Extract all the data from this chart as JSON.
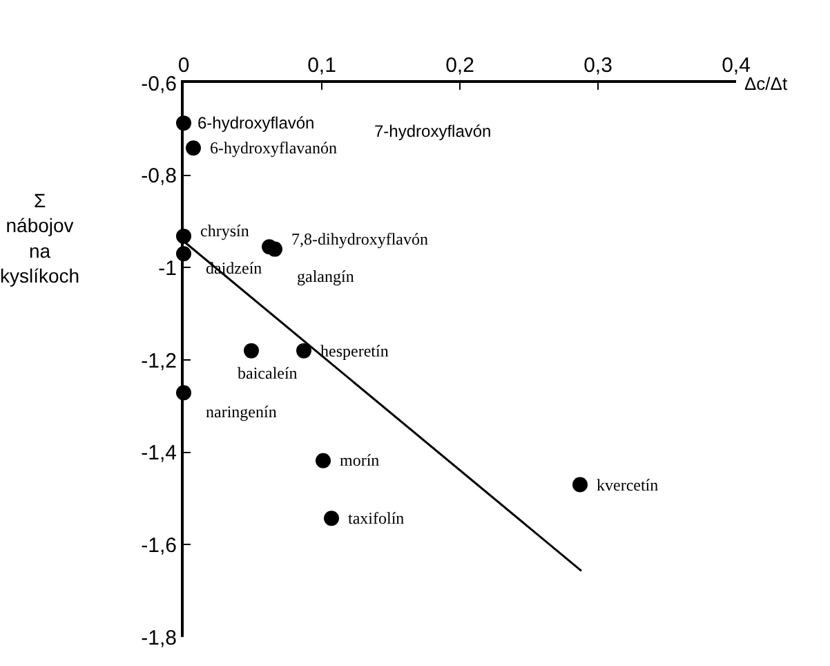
{
  "chart_data": {
    "type": "scatter",
    "xlabel": "Δc/Δt",
    "ylabel": "Σ nábojov na kyslíkoch",
    "xlim": [
      0,
      0.4
    ],
    "xticks": [
      {
        "value": 0,
        "label": "0"
      },
      {
        "value": 0.1,
        "label": "0,1"
      },
      {
        "value": 0.2,
        "label": "0,2"
      },
      {
        "value": 0.3,
        "label": "0,3"
      },
      {
        "value": 0.4,
        "label": "0,4"
      }
    ],
    "ylim": [
      -1.8,
      -0.6
    ],
    "yticks": [
      {
        "value": -1.8,
        "label": "-1,8"
      },
      {
        "value": -1.6,
        "label": "-1,6"
      },
      {
        "value": -1.4,
        "label": "-1,4"
      },
      {
        "value": -1.2,
        "label": "-1,2"
      },
      {
        "value": -1,
        "label": "-1"
      },
      {
        "value": -0.8,
        "label": "-0,8"
      },
      {
        "value": -0.6,
        "label": "-0,6"
      }
    ],
    "series": [
      {
        "marker": "circle",
        "color": "#000000",
        "x": [
          0,
          0.007,
          0,
          0,
          0.062,
          0.066,
          0.049,
          0.087,
          0,
          0.101,
          0.107,
          0.287
        ],
        "values": [
          -0.687,
          -0.741,
          -0.932,
          -0.97,
          -0.955,
          -0.96,
          -1.18,
          -1.18,
          -1.271,
          -1.418,
          -1.543,
          -1.47
        ]
      },
      {
        "type": "line",
        "color": "#000000",
        "x": [
          0,
          0.288
        ],
        "values": [
          -0.943,
          -1.657
        ]
      }
    ],
    "annotations": [
      {
        "text": "6-hydroxyflavón",
        "x": 0,
        "y": -0.687
      },
      "7-hydroxyflavón",
      {
        "text": "6-hydroxyflavanón",
        "x": 0.007,
        "y": -0.741
      },
      {
        "text": "chrysín",
        "x": 0,
        "y": -0.932
      },
      {
        "text": "daidzeín",
        "x": 0,
        "y": -0.97
      },
      {
        "text": "7,8-dihydroxyflavón",
        "x": 0.062,
        "y": -0.955
      },
      {
        "text": "galangín",
        "x": 0.066,
        "y": -0.96
      },
      {
        "text": "baicaleín",
        "x": 0.049,
        "y": -1.18
      },
      {
        "text": "hesperetín",
        "x": 0.087,
        "y": -1.18
      },
      {
        "text": "naringenín",
        "x": 0,
        "y": -1.271
      },
      {
        "text": "morín",
        "x": 0.101,
        "y": -1.418
      },
      {
        "text": "taxifolín",
        "x": 0.107,
        "y": -1.543
      },
      {
        "text": "kvercetín",
        "x": 0.287,
        "y": -1.47
      }
    ]
  }
}
